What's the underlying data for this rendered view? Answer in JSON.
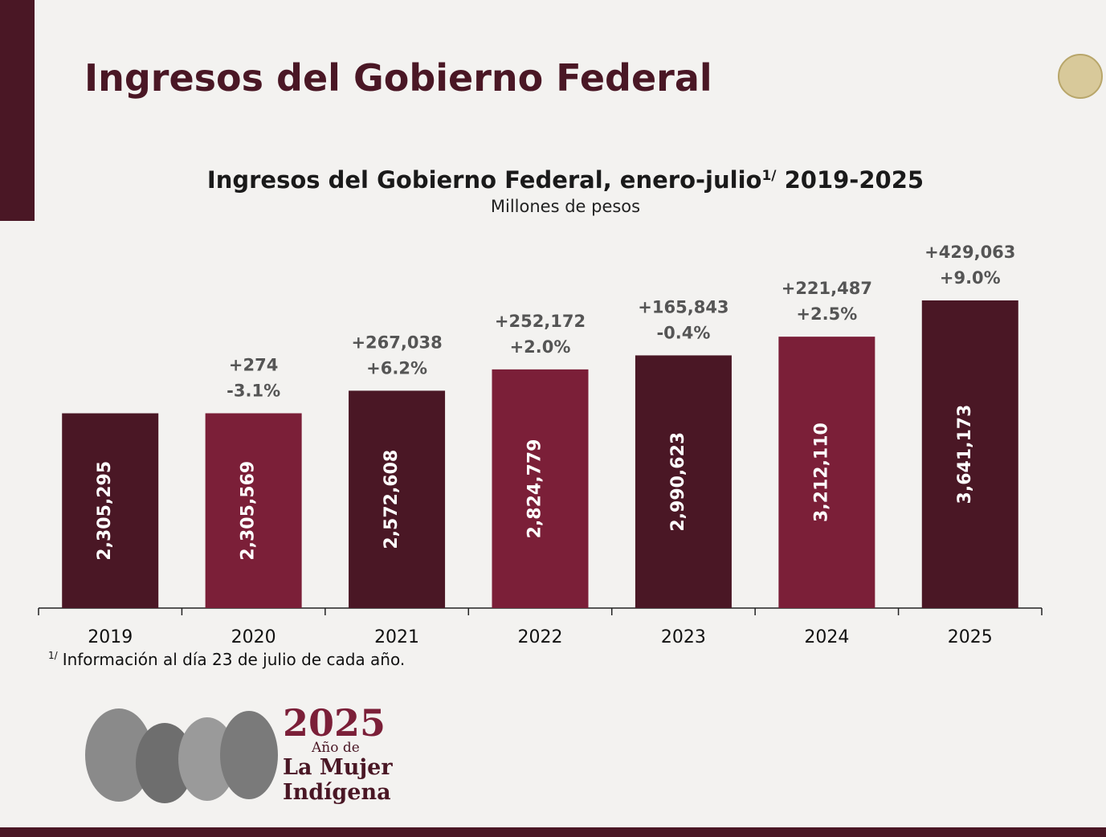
{
  "slide_title": "Ingresos del Gobierno Federal",
  "chart_data": {
    "type": "bar",
    "title": "Ingresos del Gobierno Federal, enero-julio",
    "title_superscript": "1/",
    "title_suffix": " 2019-2025",
    "subtitle": "Millones de pesos",
    "categories": [
      "2019",
      "2020",
      "2021",
      "2022",
      "2023",
      "2024",
      "2025"
    ],
    "values": [
      2305295,
      2305569,
      2572608,
      2824779,
      2990623,
      3212110,
      3641173
    ],
    "value_labels": [
      "2,305,295",
      "2,305,569",
      "2,572,608",
      "2,824,779",
      "2,990,623",
      "3,212,110",
      "3,641,173"
    ],
    "colors": [
      "#4a1725",
      "#7b1f38",
      "#4a1725",
      "#7b1f38",
      "#4a1725",
      "#7b1f38",
      "#4a1725"
    ],
    "change_labels": [
      null,
      "+274",
      "+267,038",
      "+252,172",
      "+165,843",
      "+221,487",
      "+429,063"
    ],
    "percent_labels": [
      null,
      "-3.1%",
      "+6.2%",
      "+2.0%",
      "-0.4%",
      "+2.5%",
      "+9.0%"
    ],
    "footnote_marker": "1/",
    "footnote": "Información al día 23 de julio de cada año."
  },
  "logo": {
    "year": "2025",
    "line1": "Año de",
    "line2": "La Mujer",
    "line3": "Indígena"
  }
}
